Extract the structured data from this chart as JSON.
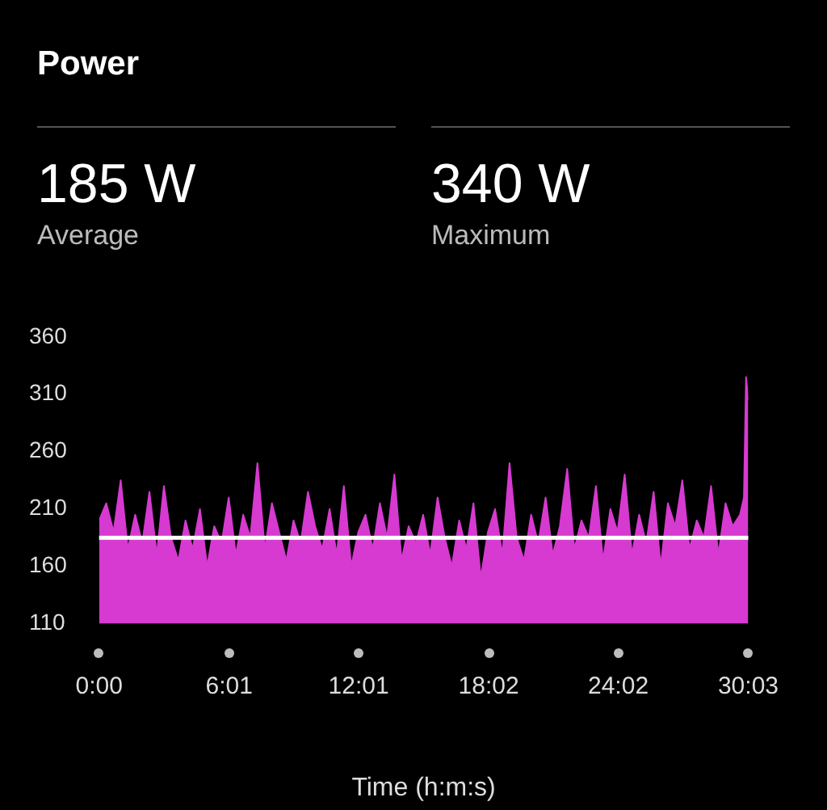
{
  "chart_data": {
    "type": "area",
    "title": "Power",
    "xlabel": "Time (h:m:s)",
    "annotations": [
      "185 W",
      "Average",
      "340 W",
      "Maximum"
    ],
    "x": [
      0,
      0.33,
      0.67,
      1,
      1.33,
      1.67,
      2,
      2.33,
      2.67,
      3,
      3.33,
      3.67,
      4,
      4.33,
      4.67,
      5,
      5.33,
      5.67,
      6,
      6.33,
      6.67,
      7,
      7.33,
      7.67,
      8,
      8.33,
      8.67,
      9,
      9.33,
      9.67,
      10,
      10.33,
      10.67,
      11,
      11.33,
      11.67,
      12,
      12.33,
      12.67,
      13,
      13.33,
      13.67,
      14,
      14.33,
      14.67,
      15,
      15.33,
      15.67,
      16,
      16.33,
      16.67,
      17,
      17.33,
      17.67,
      18,
      18.33,
      18.67,
      19,
      19.33,
      19.67,
      20,
      20.33,
      20.67,
      21,
      21.33,
      21.67,
      22,
      22.33,
      22.67,
      23,
      23.33,
      23.67,
      24,
      24.33,
      24.67,
      25,
      25.33,
      25.67,
      26,
      26.33,
      26.67,
      27,
      27.33,
      27.67,
      28,
      28.33,
      28.67,
      29,
      29.33,
      29.67,
      29.85,
      29.95,
      30.05
    ],
    "series": [
      {
        "color": "#d63ad0",
        "values": [
          200,
          215,
          190,
          235,
          175,
          205,
          180,
          225,
          170,
          230,
          185,
          165,
          200,
          175,
          210,
          160,
          195,
          180,
          220,
          170,
          205,
          185,
          250,
          175,
          215,
          190,
          165,
          200,
          180,
          225,
          195,
          175,
          210,
          170,
          230,
          160,
          190,
          205,
          175,
          215,
          185,
          240,
          165,
          195,
          180,
          205,
          170,
          220,
          185,
          160,
          200,
          175,
          215,
          150,
          190,
          210,
          170,
          250,
          185,
          165,
          205,
          180,
          220,
          170,
          195,
          245,
          175,
          200,
          185,
          230,
          165,
          210,
          190,
          240,
          170,
          205,
          180,
          225,
          160,
          215,
          195,
          235,
          175,
          200,
          185,
          230,
          170,
          215,
          195,
          205,
          220,
          325,
          305
        ]
      }
    ],
    "xlim": [
      0,
      30.05
    ],
    "xticks": [
      {
        "value": 0,
        "label": "0:00"
      },
      {
        "value": 6.017,
        "label": "6:01"
      },
      {
        "value": 12.017,
        "label": "12:01"
      },
      {
        "value": 18.033,
        "label": "18:02"
      },
      {
        "value": 24.033,
        "label": "24:02"
      },
      {
        "value": 30.05,
        "label": "30:03"
      }
    ],
    "ylim": [
      110,
      360
    ],
    "yticks": [
      110,
      160,
      210,
      260,
      310,
      360
    ],
    "ref_lines": [
      {
        "axis": "y",
        "value": 185,
        "color": "#ffffff"
      }
    ],
    "grid": false,
    "legend": false
  }
}
